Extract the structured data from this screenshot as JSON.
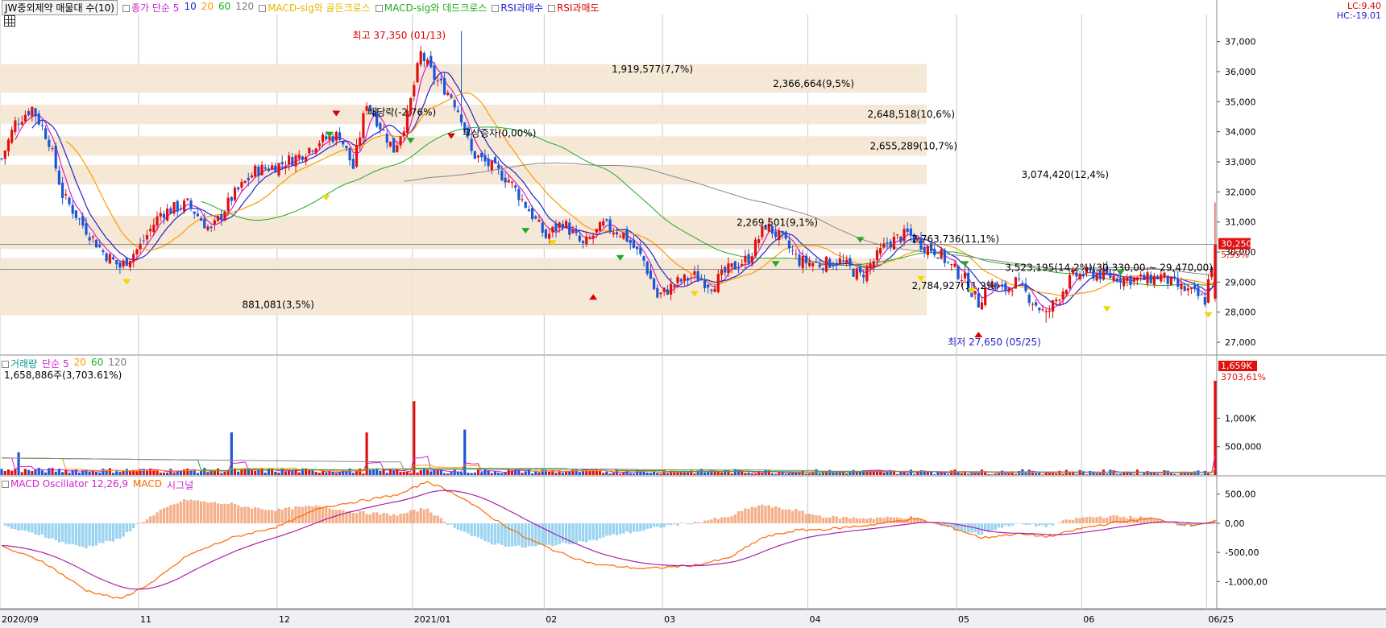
{
  "legend": {
    "title": "JW중외제약 매물대 수(10)",
    "items": [
      {
        "text": "종가 단순 5",
        "color": "#cc22cc"
      },
      {
        "text": "10",
        "color": "#2222cc"
      },
      {
        "text": "20",
        "color": "#ff9900"
      },
      {
        "text": "60",
        "color": "#22aa22"
      },
      {
        "text": "120",
        "color": "#777777"
      },
      {
        "text": "MACD-sig와 골든크로스",
        "color": "#e6b800"
      },
      {
        "text": "MACD-sig와 데드크로스",
        "color": "#22aa22"
      },
      {
        "text": "RSI과매수",
        "color": "#2222cc"
      },
      {
        "text": "RSI과매도",
        "color": "#dd0000"
      }
    ],
    "lc": "LC:9.40",
    "hc": "HC:-19.01"
  },
  "volume_legend": {
    "items": [
      {
        "text": "거래량",
        "color": "#009999"
      },
      {
        "text": "단순 5",
        "color": "#cc22cc"
      },
      {
        "text": "20",
        "color": "#ff9900"
      },
      {
        "text": "60",
        "color": "#22aa22"
      },
      {
        "text": "120",
        "color": "#777777"
      }
    ],
    "sub": "1,658,886주(3,703.61%)"
  },
  "macd_legend": {
    "items": [
      {
        "text": "MACD Oscillator 12,26,9",
        "color": "#cc22cc"
      },
      {
        "text": "MACD",
        "color": "#ff6600"
      },
      {
        "text": "시그널",
        "color": "#cc22cc"
      }
    ]
  },
  "colors": {
    "up": "#e01010",
    "down": "#1a56d6",
    "profile": "#f5e6d3",
    "osc_pos": "#f4b08a",
    "osc_neg": "#9ad4f0"
  },
  "chart_data": {
    "type": "candlestick",
    "price_ylim": [
      26600,
      37900
    ],
    "price_ticks": [
      "37,000",
      "36,000",
      "35,000",
      "34,000",
      "33,000",
      "32,000",
      "31,000",
      "30,000",
      "29,000",
      "28,000",
      "27,000"
    ],
    "volume_ylim": [
      0,
      1700000
    ],
    "volume_ticks": [
      "1,000K",
      "500,000"
    ],
    "macd_ylim": [
      -1450,
      800
    ],
    "macd_ticks": [
      "500,00",
      "0,00",
      "-500,00",
      "-1,000,00"
    ],
    "x_labels": [
      {
        "text": "2020/09",
        "i": 0
      },
      {
        "text": "11",
        "i": 41
      },
      {
        "text": "12",
        "i": 82
      },
      {
        "text": "2021/01",
        "i": 122
      },
      {
        "text": "02",
        "i": 161
      },
      {
        "text": "03",
        "i": 196
      },
      {
        "text": "04",
        "i": 239
      },
      {
        "text": "05",
        "i": 283
      },
      {
        "text": "06",
        "i": 320
      },
      {
        "text": "06/25",
        "i": 357
      }
    ],
    "n_bars": 360,
    "current_price": "30,250",
    "current_change": "5,95%",
    "current_volume": "1,659K",
    "current_volume_pct": "3703,61%",
    "highest": {
      "label": "최고 37,350 (01/13)",
      "price": 37350,
      "i": 136
    },
    "lowest": {
      "label": "최저 27,650 (05/25)",
      "price": 27650,
      "i": 309
    },
    "volume_profile": [
      {
        "from": 35900,
        "to": 36250,
        "label": "1,919,577(7,7%)"
      },
      {
        "from": 35300,
        "to": 35900,
        "label": "2,366,664(9,5%)"
      },
      {
        "from": 34250,
        "to": 34900,
        "label": "2,648,518(10,6%)"
      },
      {
        "from": 33200,
        "to": 33850,
        "label": "2,655,289(10,7%)"
      },
      {
        "from": 32250,
        "to": 32900,
        "label": "3,074,420(12,4%)"
      },
      {
        "from": 30750,
        "to": 31200,
        "label": "2,269,501(9,1%)"
      },
      {
        "from": 30100,
        "to": 30750,
        "label": "2,763,736(11,1%)"
      },
      {
        "from": 29150,
        "to": 29800,
        "label": "3,523,195(14,2%)(30,330,00 ~ 29,470,00)"
      },
      {
        "from": 28600,
        "to": 29150,
        "label": "2,784,927(11,2%)"
      },
      {
        "from": 27900,
        "to": 28600,
        "label": "881,081(3,5%)"
      }
    ],
    "annotations": [
      {
        "text": "배당락(-2,76%)",
        "i": 109,
        "price": 34650
      },
      {
        "text": "무상증자(0,00%)",
        "i": 137,
        "price": 33950
      }
    ],
    "keyframes": [
      [
        0,
        33100
      ],
      [
        4,
        34300
      ],
      [
        9,
        34800
      ],
      [
        14,
        33700
      ],
      [
        18,
        31900
      ],
      [
        24,
        30900
      ],
      [
        30,
        30000
      ],
      [
        35,
        29500
      ],
      [
        41,
        30200
      ],
      [
        47,
        31300
      ],
      [
        55,
        31600
      ],
      [
        62,
        30700
      ],
      [
        68,
        31800
      ],
      [
        75,
        32700
      ],
      [
        82,
        32900
      ],
      [
        88,
        33200
      ],
      [
        94,
        33700
      ],
      [
        100,
        33900
      ],
      [
        104,
        32800
      ],
      [
        108,
        35000
      ],
      [
        113,
        34000
      ],
      [
        116,
        33400
      ],
      [
        120,
        34500
      ],
      [
        124,
        36600
      ],
      [
        128,
        35800
      ],
      [
        133,
        35200
      ],
      [
        136,
        34500
      ],
      [
        139,
        33300
      ],
      [
        144,
        32900
      ],
      [
        150,
        32400
      ],
      [
        156,
        31400
      ],
      [
        161,
        30500
      ],
      [
        166,
        31000
      ],
      [
        172,
        30200
      ],
      [
        178,
        30900
      ],
      [
        184,
        30600
      ],
      [
        190,
        29700
      ],
      [
        194,
        28500
      ],
      [
        200,
        29000
      ],
      [
        205,
        29200
      ],
      [
        210,
        28900
      ],
      [
        215,
        29400
      ],
      [
        221,
        29800
      ],
      [
        226,
        30900
      ],
      [
        231,
        30400
      ],
      [
        236,
        29700
      ],
      [
        242,
        29600
      ],
      [
        248,
        29700
      ],
      [
        254,
        29200
      ],
      [
        258,
        29700
      ],
      [
        262,
        30300
      ],
      [
        268,
        30600
      ],
      [
        273,
        30200
      ],
      [
        277,
        30000
      ],
      [
        281,
        29500
      ],
      [
        285,
        29100
      ],
      [
        289,
        28300
      ],
      [
        292,
        29000
      ],
      [
        296,
        28700
      ],
      [
        300,
        29000
      ],
      [
        304,
        28500
      ],
      [
        309,
        27900
      ],
      [
        313,
        28600
      ],
      [
        317,
        29200
      ],
      [
        322,
        29300
      ],
      [
        328,
        29200
      ],
      [
        334,
        29100
      ],
      [
        339,
        29100
      ],
      [
        343,
        29200
      ],
      [
        347,
        28900
      ],
      [
        351,
        28700
      ],
      [
        356,
        28400
      ],
      [
        359,
        30250
      ]
    ],
    "volume_spikes": [
      [
        122,
        1300000
      ],
      [
        137,
        800000
      ],
      [
        108,
        750000
      ],
      [
        68,
        750000
      ],
      [
        5,
        400000
      ],
      [
        359,
        1659000
      ]
    ],
    "macd_keyframes": [
      [
        0,
        -400
      ],
      [
        12,
        -650
      ],
      [
        25,
        -1150
      ],
      [
        35,
        -1300
      ],
      [
        45,
        -1000
      ],
      [
        55,
        -550
      ],
      [
        68,
        -250
      ],
      [
        82,
        -50
      ],
      [
        95,
        280
      ],
      [
        108,
        400
      ],
      [
        118,
        500
      ],
      [
        126,
        720
      ],
      [
        136,
        450
      ],
      [
        145,
        100
      ],
      [
        155,
        -250
      ],
      [
        165,
        -500
      ],
      [
        175,
        -700
      ],
      [
        190,
        -780
      ],
      [
        205,
        -720
      ],
      [
        215,
        -600
      ],
      [
        225,
        -250
      ],
      [
        235,
        -120
      ],
      [
        245,
        -100
      ],
      [
        258,
        -20
      ],
      [
        270,
        80
      ],
      [
        280,
        -50
      ],
      [
        290,
        -250
      ],
      [
        300,
        -180
      ],
      [
        310,
        -230
      ],
      [
        320,
        -80
      ],
      [
        330,
        20
      ],
      [
        340,
        80
      ],
      [
        352,
        -30
      ],
      [
        359,
        30
      ]
    ]
  }
}
